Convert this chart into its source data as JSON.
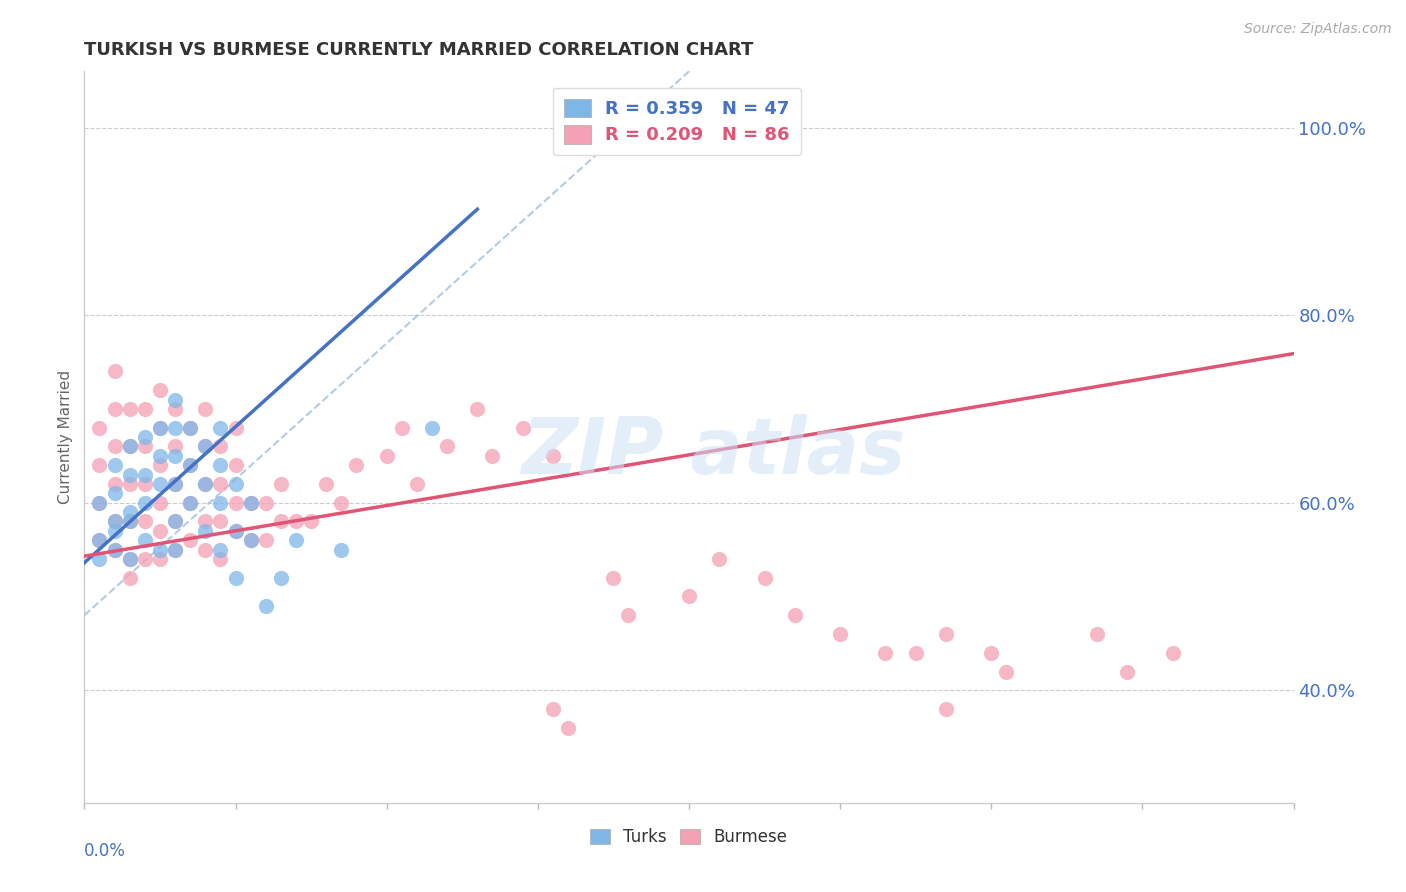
{
  "title": "TURKISH VS BURMESE CURRENTLY MARRIED CORRELATION CHART",
  "source": "Source: ZipAtlas.com",
  "xlabel_bottom_left": "0.0%",
  "xlabel_bottom_right": "80.0%",
  "ylabel": "Currently Married",
  "x_min": 0.0,
  "x_max": 0.8,
  "y_min": 0.28,
  "y_max": 1.06,
  "turks_R": 0.359,
  "turks_N": 47,
  "burmese_R": 0.209,
  "burmese_N": 86,
  "turks_color": "#7eb6e8",
  "burmese_color": "#f4a0b5",
  "turks_line_color": "#4472c4",
  "burmese_line_color": "#e05575",
  "turks_dash_color": "#7bafd4",
  "right_yticks": [
    0.4,
    0.6,
    0.8,
    1.0
  ],
  "right_ytick_labels": [
    "40.0%",
    "60.0%",
    "80.0%",
    "100.0%"
  ],
  "background_color": "#ffffff",
  "turks_x": [
    0.01,
    0.01,
    0.01,
    0.02,
    0.02,
    0.02,
    0.02,
    0.02,
    0.03,
    0.03,
    0.03,
    0.03,
    0.03,
    0.04,
    0.04,
    0.04,
    0.04,
    0.05,
    0.05,
    0.05,
    0.05,
    0.06,
    0.06,
    0.06,
    0.06,
    0.06,
    0.06,
    0.07,
    0.07,
    0.07,
    0.08,
    0.08,
    0.08,
    0.09,
    0.09,
    0.09,
    0.09,
    0.1,
    0.1,
    0.1,
    0.11,
    0.11,
    0.12,
    0.13,
    0.14,
    0.17,
    0.23
  ],
  "turks_y": [
    0.54,
    0.56,
    0.6,
    0.57,
    0.61,
    0.64,
    0.58,
    0.55,
    0.59,
    0.63,
    0.66,
    0.58,
    0.54,
    0.6,
    0.63,
    0.67,
    0.56,
    0.62,
    0.65,
    0.68,
    0.55,
    0.58,
    0.62,
    0.65,
    0.68,
    0.71,
    0.55,
    0.6,
    0.64,
    0.68,
    0.57,
    0.62,
    0.66,
    0.55,
    0.6,
    0.64,
    0.68,
    0.57,
    0.62,
    0.52,
    0.56,
    0.6,
    0.49,
    0.52,
    0.56,
    0.55,
    0.68
  ],
  "burmese_x": [
    0.01,
    0.01,
    0.01,
    0.01,
    0.02,
    0.02,
    0.02,
    0.02,
    0.02,
    0.02,
    0.03,
    0.03,
    0.03,
    0.03,
    0.03,
    0.03,
    0.04,
    0.04,
    0.04,
    0.04,
    0.04,
    0.05,
    0.05,
    0.05,
    0.05,
    0.05,
    0.05,
    0.06,
    0.06,
    0.06,
    0.06,
    0.06,
    0.07,
    0.07,
    0.07,
    0.07,
    0.08,
    0.08,
    0.08,
    0.08,
    0.08,
    0.09,
    0.09,
    0.09,
    0.09,
    0.1,
    0.1,
    0.1,
    0.1,
    0.11,
    0.11,
    0.12,
    0.12,
    0.13,
    0.13,
    0.14,
    0.15,
    0.16,
    0.17,
    0.18,
    0.2,
    0.21,
    0.22,
    0.24,
    0.26,
    0.27,
    0.29,
    0.31,
    0.35,
    0.36,
    0.4,
    0.42,
    0.45,
    0.47,
    0.5,
    0.53,
    0.57,
    0.6,
    0.61,
    0.67,
    0.69,
    0.72,
    0.31,
    0.32,
    0.55,
    0.57
  ],
  "burmese_y": [
    0.56,
    0.6,
    0.64,
    0.68,
    0.55,
    0.58,
    0.62,
    0.66,
    0.7,
    0.74,
    0.54,
    0.58,
    0.62,
    0.66,
    0.7,
    0.52,
    0.54,
    0.58,
    0.62,
    0.66,
    0.7,
    0.54,
    0.57,
    0.6,
    0.64,
    0.68,
    0.72,
    0.55,
    0.58,
    0.62,
    0.66,
    0.7,
    0.56,
    0.6,
    0.64,
    0.68,
    0.55,
    0.58,
    0.62,
    0.66,
    0.7,
    0.54,
    0.58,
    0.62,
    0.66,
    0.57,
    0.6,
    0.64,
    0.68,
    0.56,
    0.6,
    0.56,
    0.6,
    0.58,
    0.62,
    0.58,
    0.58,
    0.62,
    0.6,
    0.64,
    0.65,
    0.68,
    0.62,
    0.66,
    0.7,
    0.65,
    0.68,
    0.65,
    0.52,
    0.48,
    0.5,
    0.54,
    0.52,
    0.48,
    0.46,
    0.44,
    0.46,
    0.44,
    0.42,
    0.46,
    0.42,
    0.44,
    0.38,
    0.36,
    0.44,
    0.38
  ],
  "turks_line_intercept": 0.536,
  "turks_line_slope": 1.45,
  "burmese_line_intercept": 0.543,
  "burmese_line_slope": 0.27,
  "turks_dash_intercept": 0.48,
  "turks_dash_slope": 1.45
}
